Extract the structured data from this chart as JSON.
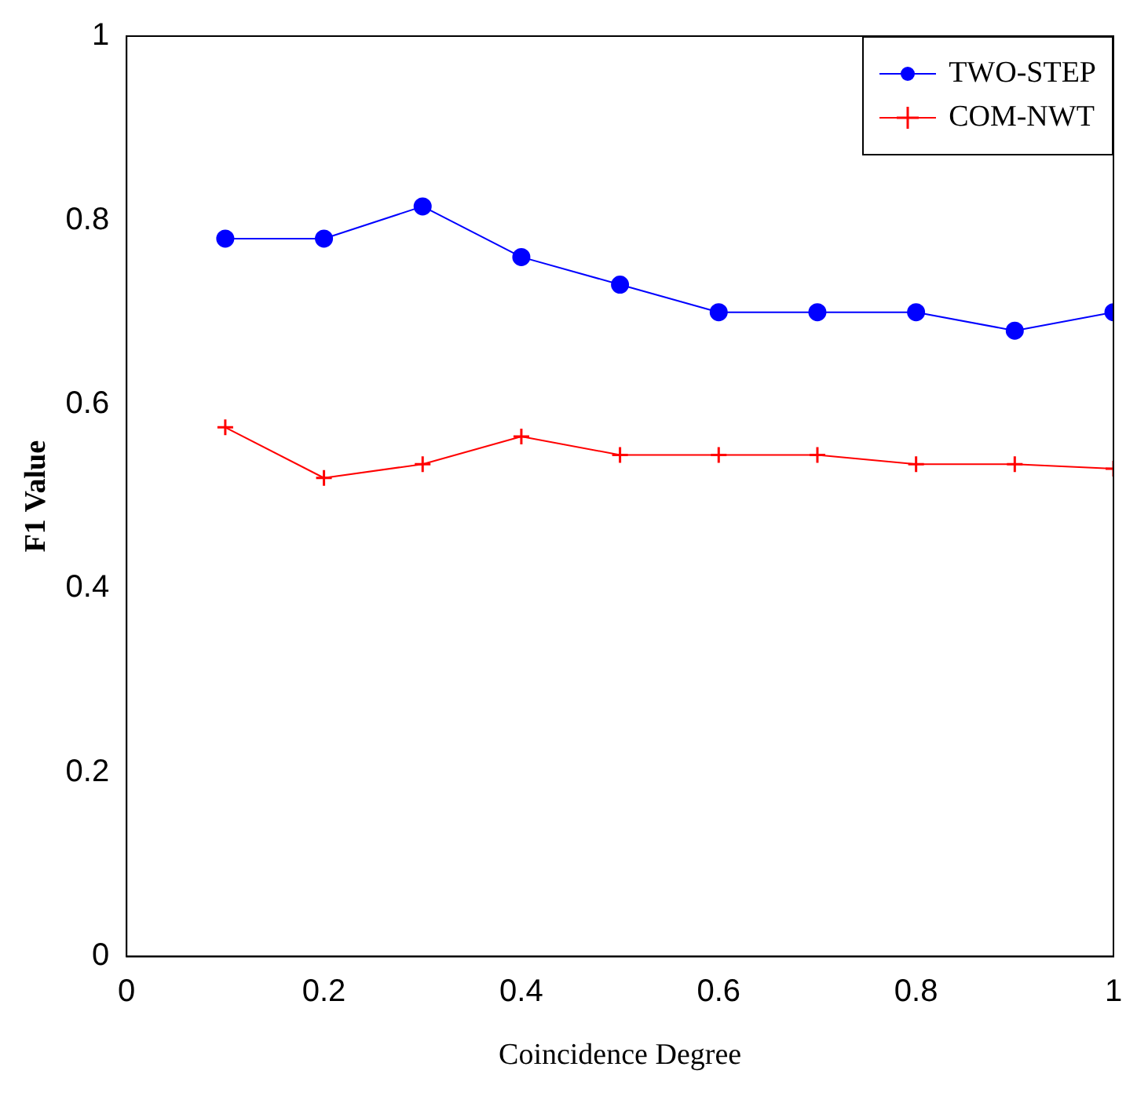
{
  "chart_data": {
    "type": "line",
    "xlabel": "Coincidence Degree",
    "ylabel": "F1 Value",
    "x": [
      0.1,
      0.2,
      0.3,
      0.4,
      0.5,
      0.6,
      0.7,
      0.8,
      0.9,
      1.0
    ],
    "series": [
      {
        "name": "TWO-STEP",
        "color": "#0000ff",
        "marker": "circle",
        "values": [
          0.78,
          0.78,
          0.815,
          0.76,
          0.73,
          0.7,
          0.7,
          0.7,
          0.68,
          0.7
        ]
      },
      {
        "name": "COM-NWT",
        "color": "#ff0000",
        "marker": "cross",
        "values": [
          0.575,
          0.52,
          0.535,
          0.565,
          0.545,
          0.545,
          0.545,
          0.535,
          0.535,
          0.53
        ]
      }
    ],
    "xlim": [
      0,
      1
    ],
    "xticks": [
      0,
      0.2,
      0.4,
      0.6,
      0.8,
      1
    ],
    "ylim": [
      0,
      1
    ],
    "yticks": [
      0,
      0.2,
      0.4,
      0.6,
      0.8,
      1
    ],
    "grid": false,
    "legend": "top right",
    "line_style": "solid"
  }
}
